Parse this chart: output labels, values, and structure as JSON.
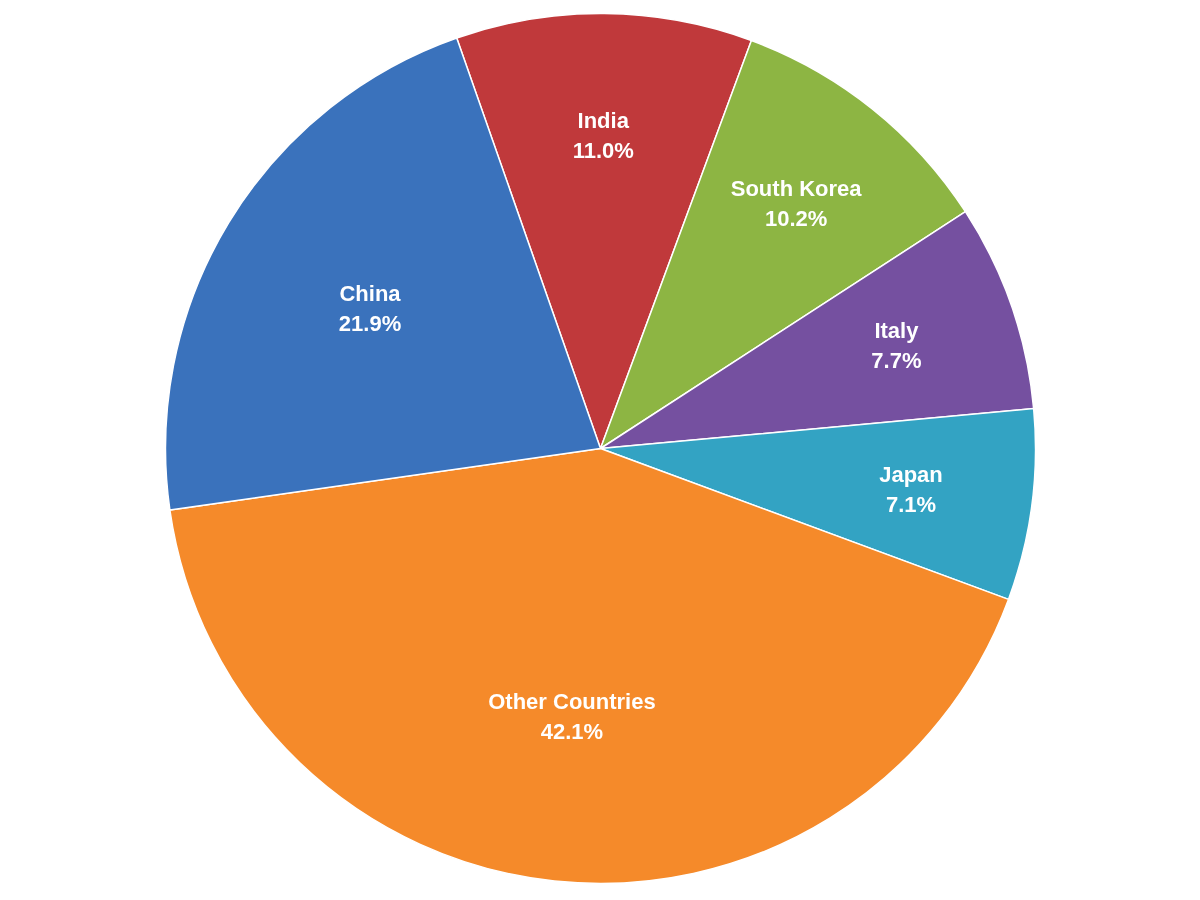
{
  "chart_data": {
    "type": "pie",
    "categories": [
      "India",
      "South Korea",
      "Italy",
      "Japan",
      "Other Countries",
      "China"
    ],
    "values": [
      11.0,
      10.2,
      7.7,
      7.1,
      42.1,
      21.9
    ],
    "colors": [
      "#c0393b",
      "#8db543",
      "#7550a0",
      "#33a3c3",
      "#f58a2a",
      "#3a72bc"
    ],
    "value_labels": [
      "11.0%",
      "10.2%",
      "7.7%",
      "7.1%",
      "42.1%",
      "21.9%"
    ],
    "legend": false
  }
}
